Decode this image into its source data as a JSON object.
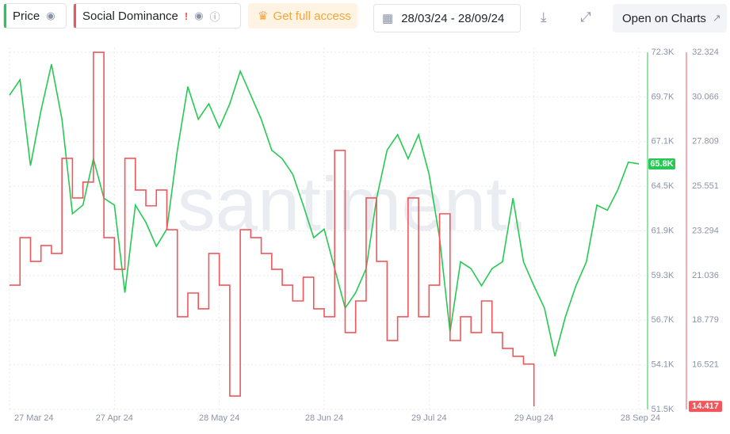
{
  "toolbar": {
    "get_access": "Get full access",
    "date_range": "28/03/24 - 28/09/24",
    "open_charts": "Open on Charts",
    "warning": "!"
  },
  "chart_data": {
    "type": "line",
    "watermark": "santiment.",
    "categories": [
      "27 Mar 24",
      null,
      null,
      null,
      null,
      null,
      null,
      null,
      null,
      null,
      "27 Apr 24",
      null,
      null,
      null,
      null,
      null,
      null,
      null,
      null,
      null,
      "28 May 24",
      null,
      null,
      null,
      null,
      null,
      null,
      null,
      null,
      null,
      "28 Jun 24",
      null,
      null,
      null,
      null,
      null,
      null,
      null,
      null,
      null,
      "29 Jul 24",
      null,
      null,
      null,
      null,
      null,
      null,
      null,
      null,
      null,
      "29 Aug 24",
      null,
      null,
      null,
      null,
      null,
      null,
      null,
      null,
      null,
      "28 Sep 24"
    ],
    "series": [
      {
        "name": "Price",
        "color": "#26c953",
        "axis": "y",
        "step": false,
        "last_label": "65.8K",
        "values": [
          69800,
          70700,
          65700,
          68900,
          71600,
          68400,
          62900,
          63400,
          66100,
          63800,
          63400,
          58300,
          63400,
          62400,
          61000,
          62000,
          66600,
          70300,
          68400,
          69300,
          67900,
          69300,
          71200,
          69800,
          68400,
          66600,
          66100,
          65200,
          63400,
          61500,
          62000,
          59700,
          57400,
          58300,
          59700,
          63800,
          66600,
          67500,
          66100,
          67500,
          65200,
          61500,
          56000,
          60100,
          59700,
          58700,
          59700,
          60100,
          63800,
          60100,
          58700,
          57400,
          54600,
          56900,
          58700,
          60100,
          63400,
          63100,
          64300,
          65900,
          65800
        ]
      },
      {
        "name": "Social Dominance",
        "color": "#f0575c",
        "axis": "y2",
        "step": true,
        "last_label": "14.417",
        "values": [
          20.55,
          22.95,
          21.75,
          22.55,
          22.15,
          26.96,
          24.96,
          25.76,
          32.32,
          22.95,
          21.35,
          26.96,
          25.36,
          24.56,
          25.36,
          23.35,
          18.95,
          20.15,
          19.35,
          22.15,
          20.55,
          14.94,
          23.35,
          22.95,
          22.15,
          21.35,
          20.55,
          19.75,
          20.95,
          19.35,
          18.95,
          27.36,
          18.15,
          19.75,
          24.96,
          21.75,
          17.75,
          18.95,
          24.96,
          18.95,
          20.55,
          24.16,
          17.75,
          18.95,
          18.15,
          19.75,
          18.15,
          17.35,
          16.95,
          16.56,
          14.417,
          null,
          null,
          null,
          null,
          null,
          null,
          null,
          null,
          null,
          null
        ]
      }
    ],
    "ylim": [
      51500,
      72300
    ],
    "yticks": [
      {
        "value": 51500,
        "label": "51.5K"
      },
      {
        "value": 54100,
        "label": "54.1K"
      },
      {
        "value": 56700,
        "label": "56.7K"
      },
      {
        "value": 59300,
        "label": "59.3K"
      },
      {
        "value": 61900,
        "label": "61.9K"
      },
      {
        "value": 64500,
        "label": "64.5K"
      },
      {
        "value": 67100,
        "label": "67.1K"
      },
      {
        "value": 69700,
        "label": "69.7K"
      },
      {
        "value": 72300,
        "label": "72.3K"
      }
    ],
    "y2lim": [
      14.2635,
      32.324
    ],
    "y2ticks": [
      16.521,
      18.779,
      21.036,
      23.294,
      25.551,
      27.809,
      30.066,
      32.324
    ],
    "grid": true
  }
}
